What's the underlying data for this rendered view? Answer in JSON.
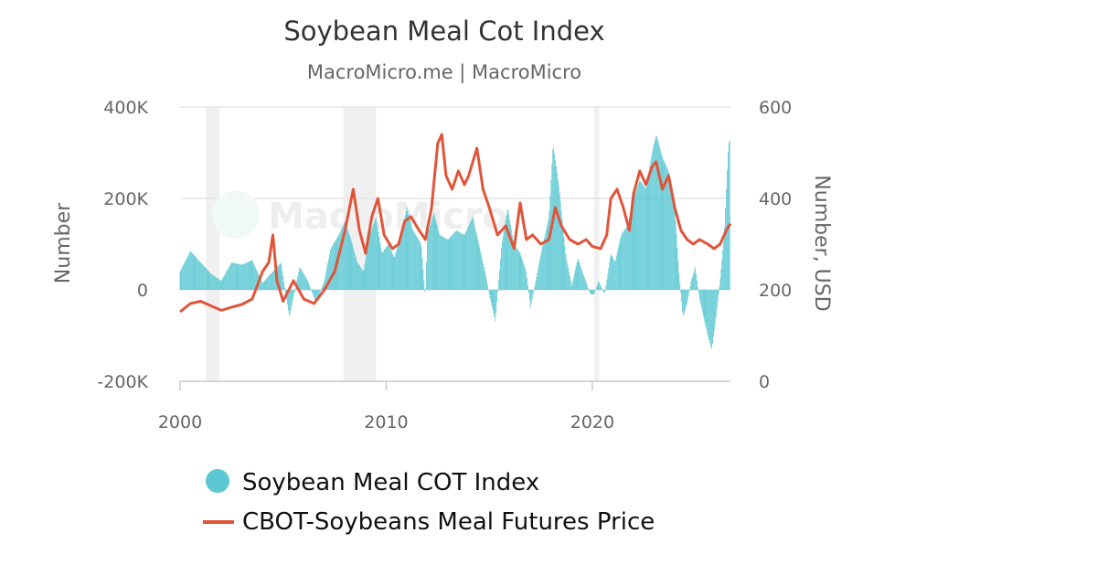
{
  "chart_data": {
    "type": "bar+line",
    "title": "Soybean Meal Cot Index",
    "subtitle": "MacroMicro.me | MacroMicro",
    "watermark": "MacroMicro",
    "y_left_label": "Number",
    "y_right_label": "Number, USD",
    "y_left_lim": [
      -200000,
      400000
    ],
    "y_right_lim": [
      0,
      600
    ],
    "x_lim": [
      2000.0,
      2026.7
    ],
    "x_ticks": [
      {
        "value": 2000,
        "label": "2000"
      },
      {
        "value": 2010,
        "label": "2010"
      },
      {
        "value": 2020,
        "label": "2020"
      }
    ],
    "y_left_ticks": [
      {
        "value": 400000,
        "label": "400K"
      },
      {
        "value": 200000,
        "label": "200K"
      },
      {
        "value": 0,
        "label": "0"
      },
      {
        "value": -200000,
        "label": "-200K"
      }
    ],
    "y_right_ticks": [
      {
        "value": 600,
        "label": "600"
      },
      {
        "value": 400,
        "label": "400"
      },
      {
        "value": 200,
        "label": "200"
      },
      {
        "value": 0,
        "label": "0"
      }
    ],
    "recession_bands": [
      [
        2001.25,
        2001.92
      ],
      [
        2007.92,
        2009.5
      ],
      [
        2020.08,
        2020.33
      ]
    ],
    "series": [
      {
        "name": "Soybean Meal COT Index",
        "type": "bar",
        "axis": "left",
        "color": "#5bc8d3",
        "points": [
          [
            2000.0,
            40000
          ],
          [
            2000.5,
            85000
          ],
          [
            2001.0,
            60000
          ],
          [
            2001.5,
            35000
          ],
          [
            2002.0,
            20000
          ],
          [
            2002.5,
            60000
          ],
          [
            2003.0,
            55000
          ],
          [
            2003.5,
            65000
          ],
          [
            2004.0,
            15000
          ],
          [
            2004.5,
            40000
          ],
          [
            2004.9,
            60000
          ],
          [
            2005.3,
            -60000
          ],
          [
            2005.8,
            50000
          ],
          [
            2006.2,
            20000
          ],
          [
            2006.6,
            -30000
          ],
          [
            2007.0,
            20000
          ],
          [
            2007.3,
            90000
          ],
          [
            2007.7,
            120000
          ],
          [
            2008.0,
            150000
          ],
          [
            2008.3,
            110000
          ],
          [
            2008.6,
            60000
          ],
          [
            2008.9,
            40000
          ],
          [
            2009.2,
            120000
          ],
          [
            2009.5,
            160000
          ],
          [
            2009.8,
            80000
          ],
          [
            2010.1,
            100000
          ],
          [
            2010.4,
            70000
          ],
          [
            2010.7,
            120000
          ],
          [
            2011.0,
            180000
          ],
          [
            2011.3,
            130000
          ],
          [
            2011.7,
            100000
          ],
          [
            2011.9,
            -20000
          ],
          [
            2012.0,
            120000
          ],
          [
            2012.3,
            170000
          ],
          [
            2012.6,
            120000
          ],
          [
            2013.0,
            110000
          ],
          [
            2013.4,
            130000
          ],
          [
            2013.8,
            120000
          ],
          [
            2014.2,
            160000
          ],
          [
            2014.5,
            100000
          ],
          [
            2014.8,
            40000
          ],
          [
            2015.0,
            -10000
          ],
          [
            2015.3,
            -70000
          ],
          [
            2015.6,
            100000
          ],
          [
            2015.9,
            180000
          ],
          [
            2016.2,
            100000
          ],
          [
            2016.5,
            80000
          ],
          [
            2016.8,
            40000
          ],
          [
            2017.0,
            -40000
          ],
          [
            2017.3,
            30000
          ],
          [
            2017.6,
            100000
          ],
          [
            2017.9,
            160000
          ],
          [
            2018.1,
            320000
          ],
          [
            2018.4,
            220000
          ],
          [
            2018.7,
            80000
          ],
          [
            2019.0,
            10000
          ],
          [
            2019.3,
            70000
          ],
          [
            2019.6,
            30000
          ],
          [
            2019.9,
            -10000
          ],
          [
            2020.1,
            -10000
          ],
          [
            2020.3,
            20000
          ],
          [
            2020.6,
            -10000
          ],
          [
            2020.9,
            80000
          ],
          [
            2021.1,
            60000
          ],
          [
            2021.4,
            120000
          ],
          [
            2021.7,
            140000
          ],
          [
            2022.0,
            200000
          ],
          [
            2022.3,
            240000
          ],
          [
            2022.6,
            220000
          ],
          [
            2022.9,
            300000
          ],
          [
            2023.1,
            340000
          ],
          [
            2023.4,
            290000
          ],
          [
            2023.7,
            260000
          ],
          [
            2024.0,
            180000
          ],
          [
            2024.2,
            40000
          ],
          [
            2024.4,
            -60000
          ],
          [
            2024.6,
            -30000
          ],
          [
            2024.8,
            20000
          ],
          [
            2025.0,
            50000
          ],
          [
            2025.2,
            -20000
          ],
          [
            2025.4,
            -60000
          ],
          [
            2025.6,
            -100000
          ],
          [
            2025.8,
            -130000
          ],
          [
            2026.0,
            -60000
          ],
          [
            2026.2,
            20000
          ],
          [
            2026.4,
            120000
          ],
          [
            2026.6,
            320000
          ],
          [
            2026.7,
            330000
          ]
        ]
      },
      {
        "name": "CBOT-Soybeans Meal Futures Price",
        "type": "line",
        "axis": "right",
        "color": "#e0553a",
        "points": [
          [
            2000.0,
            152
          ],
          [
            2000.5,
            170
          ],
          [
            2001.0,
            175
          ],
          [
            2001.5,
            165
          ],
          [
            2002.0,
            155
          ],
          [
            2002.5,
            162
          ],
          [
            2003.0,
            168
          ],
          [
            2003.5,
            180
          ],
          [
            2004.0,
            240
          ],
          [
            2004.3,
            260
          ],
          [
            2004.5,
            320
          ],
          [
            2004.7,
            220
          ],
          [
            2005.0,
            175
          ],
          [
            2005.5,
            220
          ],
          [
            2006.0,
            180
          ],
          [
            2006.5,
            170
          ],
          [
            2007.0,
            200
          ],
          [
            2007.5,
            240
          ],
          [
            2008.0,
            330
          ],
          [
            2008.4,
            420
          ],
          [
            2008.7,
            330
          ],
          [
            2009.0,
            280
          ],
          [
            2009.3,
            360
          ],
          [
            2009.6,
            400
          ],
          [
            2009.9,
            320
          ],
          [
            2010.3,
            290
          ],
          [
            2010.6,
            300
          ],
          [
            2010.9,
            350
          ],
          [
            2011.2,
            360
          ],
          [
            2011.6,
            330
          ],
          [
            2011.9,
            310
          ],
          [
            2012.2,
            380
          ],
          [
            2012.5,
            520
          ],
          [
            2012.7,
            540
          ],
          [
            2012.9,
            450
          ],
          [
            2013.2,
            420
          ],
          [
            2013.5,
            460
          ],
          [
            2013.8,
            430
          ],
          [
            2014.0,
            450
          ],
          [
            2014.4,
            510
          ],
          [
            2014.7,
            420
          ],
          [
            2015.0,
            380
          ],
          [
            2015.4,
            320
          ],
          [
            2015.8,
            340
          ],
          [
            2016.2,
            290
          ],
          [
            2016.5,
            390
          ],
          [
            2016.8,
            310
          ],
          [
            2017.1,
            320
          ],
          [
            2017.5,
            300
          ],
          [
            2017.9,
            310
          ],
          [
            2018.2,
            380
          ],
          [
            2018.5,
            340
          ],
          [
            2018.9,
            310
          ],
          [
            2019.3,
            300
          ],
          [
            2019.7,
            310
          ],
          [
            2020.0,
            295
          ],
          [
            2020.4,
            290
          ],
          [
            2020.7,
            320
          ],
          [
            2020.9,
            400
          ],
          [
            2021.2,
            420
          ],
          [
            2021.5,
            380
          ],
          [
            2021.8,
            330
          ],
          [
            2022.0,
            410
          ],
          [
            2022.3,
            460
          ],
          [
            2022.6,
            430
          ],
          [
            2022.9,
            470
          ],
          [
            2023.1,
            480
          ],
          [
            2023.4,
            420
          ],
          [
            2023.7,
            450
          ],
          [
            2024.0,
            380
          ],
          [
            2024.3,
            330
          ],
          [
            2024.6,
            310
          ],
          [
            2024.9,
            300
          ],
          [
            2025.2,
            310
          ],
          [
            2025.6,
            300
          ],
          [
            2025.9,
            290
          ],
          [
            2026.2,
            300
          ],
          [
            2026.5,
            330
          ],
          [
            2026.7,
            345
          ]
        ]
      }
    ],
    "legend": [
      {
        "label": "Soybean Meal COT Index",
        "marker": "circle",
        "color": "#5bc8d3"
      },
      {
        "label": "CBOT-Soybeans Meal Futures Price",
        "marker": "line",
        "color": "#e0553a"
      }
    ]
  }
}
